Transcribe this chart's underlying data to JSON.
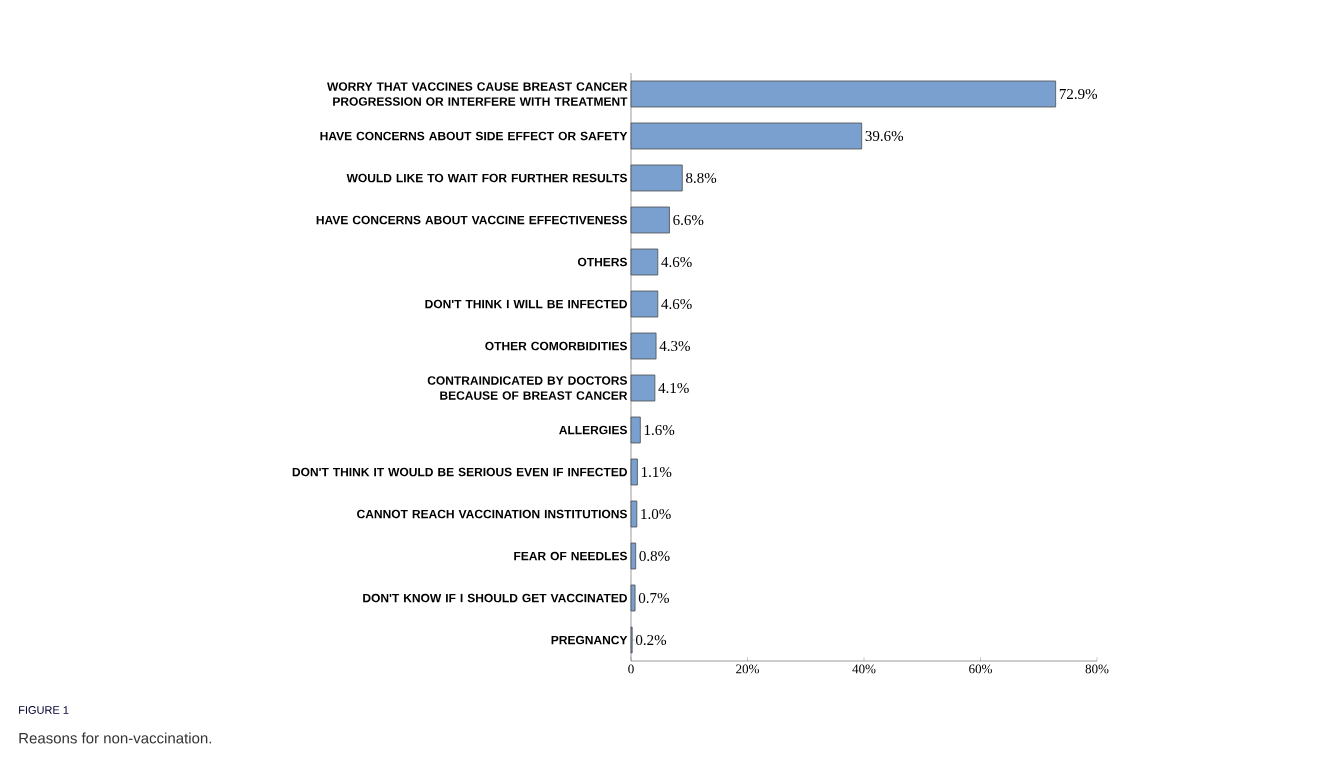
{
  "chart_data": {
    "type": "bar",
    "orientation": "horizontal",
    "color": "#7aa0d0",
    "categories": [
      "WORRY THAT VACCINES CAUSE BREAST CANCER PROGRESSION OR INTERFERE WITH TREATMENT",
      "HAVE CONCERNS ABOUT SIDE EFFECT OR SAFETY",
      "WOULD LIKE TO WAIT FOR FURTHER RESULTS",
      "HAVE CONCERNS ABOUT VACCINE EFFECTIVENESS",
      "OTHERS",
      "DON'T THINK I WILL BE INFECTED",
      "OTHER COMORBIDITIES",
      "CONTRAINDICATED BY DOCTORS BECAUSE OF BREAST CANCER",
      "ALLERGIES",
      "DON'T THINK IT WOULD BE SERIOUS EVEN IF INFECTED",
      "CANNOT REACH VACCINATION INSTITUTIONS",
      "FEAR OF NEEDLES",
      "DON'T KNOW IF I SHOULD GET VACCINATED",
      "PREGNANCY"
    ],
    "values": [
      72.9,
      39.6,
      8.8,
      6.6,
      4.6,
      4.6,
      4.3,
      4.1,
      1.6,
      1.1,
      1.0,
      0.8,
      0.7,
      0.2
    ],
    "value_labels": [
      "72.9%",
      "39.6%",
      "8.8%",
      "6.6%",
      "4.6%",
      "4.6%",
      "4.3%",
      "4.1%",
      "1.6%",
      "1.1%",
      "1.0%",
      "0.8%",
      "0.7%",
      "0.2%"
    ],
    "xlim": [
      0,
      80
    ],
    "xticks": [
      0,
      {
        "value": 20,
        "label": "20%"
      },
      {
        "value": 40,
        "label": "40%"
      },
      {
        "value": 60,
        "label": "60%"
      },
      {
        "value": 80,
        "label": "80%"
      }
    ],
    "grid": false,
    "annotations": [
      "FIGURE 1",
      "Reasons for non-vaccination."
    ]
  }
}
